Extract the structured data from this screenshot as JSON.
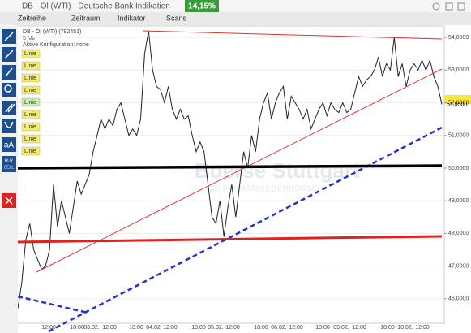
{
  "header": {
    "title": "DB - Öl (WTI) - Deutsche Bank Indikation",
    "change": "14,15%",
    "menu": [
      "Zeitreihe",
      "Zeitraum",
      "Indikator",
      "Scans"
    ]
  },
  "chart_info": {
    "instrument": "DB - Öl (WTI) (792451)",
    "interval": "5 Min",
    "config": "Aktive Konfiguration: none"
  },
  "toolbar": {
    "labels": [
      "Linie",
      "Linie",
      "Linie",
      "Linie",
      "Linie",
      "Linie",
      "Linie",
      "Linie",
      "Linie"
    ],
    "text_tool": "aA",
    "trade": [
      "BUY",
      "SELL"
    ]
  },
  "watermark": {
    "name": "Boerse Stuttgart",
    "tagline": "DIE PRIVATANLEGERBÖRSE"
  },
  "chart_data": {
    "type": "line",
    "color": "#222222",
    "values": [
      45.7,
      46.5,
      47.8,
      48.3,
      47.5,
      47.2,
      46.9,
      47.0,
      47.5,
      49.5,
      48.2,
      49.0,
      48.5,
      48.0,
      48.8,
      49.6,
      49.2,
      49.5,
      49.8,
      50.5,
      51.0,
      51.5,
      51.2,
      51.5,
      51.3,
      51.8,
      52.0,
      51.5,
      51.0,
      51.2,
      51.0,
      51.5,
      53.5,
      54.2,
      53.0,
      52.5,
      52.4,
      52.0,
      52.5,
      51.8,
      51.5,
      51.8,
      51.5,
      51.6,
      51.0,
      50.5,
      50.8,
      50.5,
      49.5,
      48.5,
      48.3,
      49.0,
      47.9,
      48.8,
      49.5,
      48.5,
      49.5,
      50.5,
      50.0,
      51.0,
      50.5,
      51.5,
      52.0,
      52.3,
      51.5,
      52.0,
      52.3,
      52.5,
      51.5,
      52.2,
      52.0,
      51.8,
      51.5,
      51.8,
      51.2,
      51.5,
      51.8,
      52.0,
      51.6,
      52.0,
      51.8,
      51.7,
      52.0,
      51.7,
      51.8,
      52.3,
      52.8,
      52.5,
      52.7,
      52.8,
      53.0,
      53.4,
      52.8,
      53.2,
      53.0,
      54.0,
      52.8,
      53.2,
      52.5,
      53.0,
      53.2,
      53.0,
      53.3,
      53.0,
      53.3,
      52.8,
      52.5,
      51.95
    ],
    "ylim": [
      45.25,
      54.35
    ],
    "yticks": [
      {
        "value": 46,
        "label": "46,0000"
      },
      {
        "value": 47,
        "label": "47,0000"
      },
      {
        "value": 48,
        "label": "48,0000"
      },
      {
        "value": 49,
        "label": "49,0000"
      },
      {
        "value": 50,
        "label": "50,0000"
      },
      {
        "value": 51,
        "label": "51,0000"
      },
      {
        "value": 52,
        "label": "52,0000"
      },
      {
        "value": 53,
        "label": "53,0000"
      },
      {
        "value": 54,
        "label": "54,0000"
      }
    ],
    "x_tick_labels": [
      "12:00",
      "18:00",
      "03.02.",
      "12:00",
      "18:00",
      "04.02.",
      "12:00",
      "18:00",
      "05.02.",
      "12:00",
      "18:00",
      "06.02.",
      "12:00",
      "18:00",
      "09.02.",
      "12:00",
      "18:00",
      "10.02.",
      "12:00"
    ],
    "current_price": {
      "value": 51.95,
      "label": "51,9500"
    }
  }
}
